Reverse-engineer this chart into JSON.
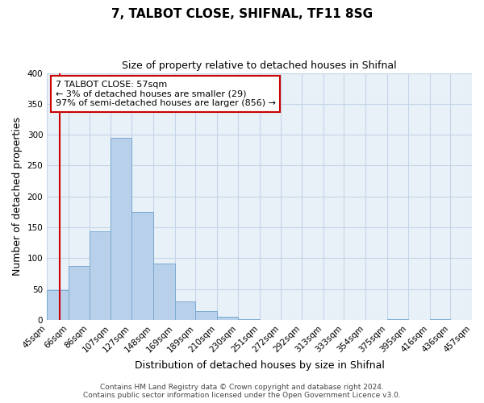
{
  "title": "7, TALBOT CLOSE, SHIFNAL, TF11 8SG",
  "subtitle": "Size of property relative to detached houses in Shifnal",
  "xlabel": "Distribution of detached houses by size in Shifnal",
  "ylabel": "Number of detached properties",
  "bins": [
    45,
    66,
    86,
    107,
    127,
    148,
    169,
    189,
    210,
    230,
    251,
    272,
    292,
    313,
    333,
    354,
    375,
    395,
    416,
    436,
    457
  ],
  "bin_labels": [
    "45sqm",
    "66sqm",
    "86sqm",
    "107sqm",
    "127sqm",
    "148sqm",
    "169sqm",
    "189sqm",
    "210sqm",
    "230sqm",
    "251sqm",
    "272sqm",
    "292sqm",
    "313sqm",
    "333sqm",
    "354sqm",
    "375sqm",
    "395sqm",
    "416sqm",
    "436sqm",
    "457sqm"
  ],
  "counts": [
    48,
    87,
    144,
    295,
    175,
    91,
    30,
    14,
    5,
    1,
    0,
    0,
    0,
    0,
    0,
    0,
    1,
    0,
    1,
    0
  ],
  "bar_color": "#b8d0ea",
  "bar_edge_color": "#7aaad0",
  "ylim": [
    0,
    400
  ],
  "yticks": [
    0,
    50,
    100,
    150,
    200,
    250,
    300,
    350,
    400
  ],
  "property_size": 57,
  "red_line_color": "#cc0000",
  "annotation_line1": "7 TALBOT CLOSE: 57sqm",
  "annotation_line2": "← 3% of detached houses are smaller (29)",
  "annotation_line3": "97% of semi-detached houses are larger (856) →",
  "annotation_box_color": "#ffffff",
  "annotation_box_edge_color": "#cc0000",
  "footer_line1": "Contains HM Land Registry data © Crown copyright and database right 2024.",
  "footer_line2": "Contains public sector information licensed under the Open Government Licence v3.0.",
  "background_color": "#e8f0f8",
  "grid_color": "#c5d5e8",
  "title_fontsize": 11,
  "subtitle_fontsize": 9,
  "axis_label_fontsize": 9,
  "tick_fontsize": 7.5,
  "annotation_fontsize": 8,
  "footer_fontsize": 6.5
}
